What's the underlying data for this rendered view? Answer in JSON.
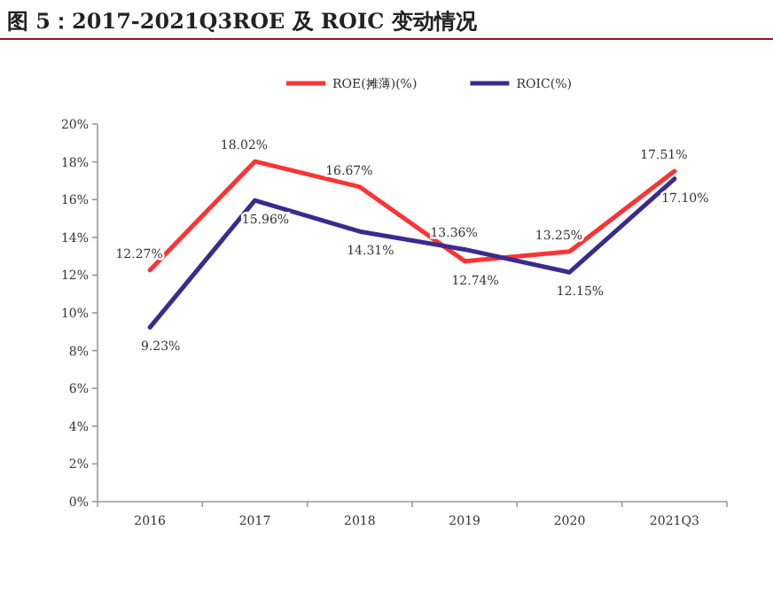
{
  "chart_data": {
    "type": "line",
    "title": "图 5：2017-2021Q3ROE 及 ROIC 变动情况",
    "categories": [
      "2016",
      "2017",
      "2018",
      "2019",
      "2020",
      "2021Q3"
    ],
    "series": [
      {
        "name": "ROE(摊薄)(%)",
        "color": "#ff3333",
        "values": [
          12.27,
          18.02,
          16.67,
          12.74,
          13.25,
          17.51
        ],
        "value_labels": [
          "12.27%",
          "18.02%",
          "16.67%",
          "12.74%",
          "13.25%",
          "17.51%"
        ]
      },
      {
        "name": "ROIC(%)",
        "color": "#3b2a8f",
        "values": [
          9.23,
          15.96,
          14.31,
          13.36,
          12.15,
          17.1
        ],
        "value_labels": [
          "9.23%",
          "15.96%",
          "14.31%",
          "13.36%",
          "12.15%",
          "17.10%"
        ]
      }
    ],
    "ylim": [
      0,
      20
    ],
    "yticks": [
      {
        "value": 0,
        "label": "0%"
      },
      {
        "value": 2,
        "label": "2%"
      },
      {
        "value": 4,
        "label": "4%"
      },
      {
        "value": 6,
        "label": "6%"
      },
      {
        "value": 8,
        "label": "8%"
      },
      {
        "value": 10,
        "label": "10%"
      },
      {
        "value": 12,
        "label": "12%"
      },
      {
        "value": 14,
        "label": "14%"
      },
      {
        "value": 16,
        "label": "16%"
      },
      {
        "value": 18,
        "label": "18%"
      },
      {
        "value": 20,
        "label": "20%"
      }
    ],
    "legend": "top",
    "marker": "none",
    "line_style": "solid"
  }
}
